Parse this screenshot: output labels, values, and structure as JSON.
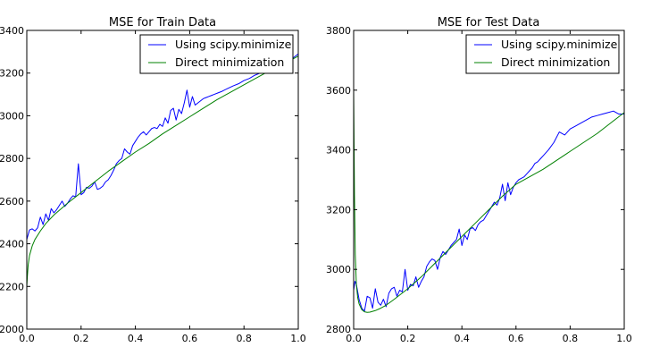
{
  "chart_data": [
    {
      "type": "line",
      "title": "MSE for Train Data",
      "xlabel": "",
      "ylabel": "",
      "xlim": [
        0.0,
        1.0
      ],
      "ylim": [
        2000,
        3400
      ],
      "xticks": [
        "0.0",
        "0.2",
        "0.4",
        "0.6",
        "0.8",
        "1.0"
      ],
      "yticks": [
        "2000",
        "2200",
        "2400",
        "2600",
        "2800",
        "3000",
        "3200",
        "3400"
      ],
      "grid": false,
      "legend_position": "top-right",
      "series": [
        {
          "name": "Using scipy.minimize",
          "color": "#0000ff",
          "x": [
            0.0,
            0.01,
            0.02,
            0.03,
            0.04,
            0.05,
            0.06,
            0.07,
            0.08,
            0.09,
            0.1,
            0.11,
            0.12,
            0.13,
            0.14,
            0.15,
            0.16,
            0.17,
            0.18,
            0.19,
            0.2,
            0.21,
            0.22,
            0.23,
            0.24,
            0.25,
            0.26,
            0.27,
            0.28,
            0.29,
            0.3,
            0.31,
            0.32,
            0.33,
            0.34,
            0.35,
            0.36,
            0.37,
            0.38,
            0.39,
            0.4,
            0.41,
            0.42,
            0.43,
            0.44,
            0.45,
            0.46,
            0.47,
            0.48,
            0.49,
            0.5,
            0.51,
            0.52,
            0.53,
            0.54,
            0.55,
            0.56,
            0.57,
            0.58,
            0.59,
            0.6,
            0.61,
            0.62,
            0.63,
            0.64,
            0.65,
            0.66,
            0.67,
            0.68,
            0.69,
            0.7,
            0.72,
            0.74,
            0.76,
            0.78,
            0.8,
            0.82,
            0.84,
            0.86,
            0.88,
            0.9,
            0.92,
            0.94,
            0.96,
            0.98,
            1.0
          ],
          "y": [
            2420,
            2465,
            2470,
            2460,
            2475,
            2525,
            2490,
            2540,
            2510,
            2565,
            2545,
            2560,
            2580,
            2600,
            2575,
            2590,
            2610,
            2625,
            2620,
            2775,
            2630,
            2640,
            2665,
            2660,
            2670,
            2690,
            2655,
            2660,
            2670,
            2690,
            2700,
            2720,
            2745,
            2775,
            2790,
            2800,
            2845,
            2830,
            2820,
            2860,
            2880,
            2900,
            2915,
            2925,
            2910,
            2925,
            2940,
            2945,
            2940,
            2960,
            2950,
            2990,
            2965,
            3025,
            3035,
            2980,
            3030,
            3010,
            3060,
            3120,
            3040,
            3090,
            3050,
            3060,
            3070,
            3080,
            3085,
            3090,
            3095,
            3100,
            3105,
            3115,
            3128,
            3140,
            3150,
            3165,
            3175,
            3190,
            3200,
            3210,
            3220,
            3235,
            3245,
            3255,
            3270,
            3290
          ]
        },
        {
          "name": "Direct minimization",
          "color": "#008000",
          "x": [
            0.0,
            0.002,
            0.005,
            0.01,
            0.02,
            0.03,
            0.05,
            0.07,
            0.1,
            0.15,
            0.2,
            0.25,
            0.3,
            0.35,
            0.4,
            0.45,
            0.5,
            0.55,
            0.6,
            0.65,
            0.7,
            0.75,
            0.8,
            0.85,
            0.9,
            0.95,
            1.0
          ],
          "y": [
            2200,
            2245,
            2300,
            2345,
            2390,
            2420,
            2460,
            2495,
            2535,
            2590,
            2640,
            2690,
            2740,
            2785,
            2830,
            2870,
            2915,
            2955,
            2995,
            3035,
            3075,
            3110,
            3145,
            3180,
            3215,
            3245,
            3280
          ]
        }
      ]
    },
    {
      "type": "line",
      "title": "MSE for Test Data",
      "xlabel": "",
      "ylabel": "",
      "xlim": [
        0.0,
        1.0
      ],
      "ylim": [
        2800,
        3800
      ],
      "xticks": [
        "0.0",
        "0.2",
        "0.4",
        "0.6",
        "0.8",
        "1.0"
      ],
      "yticks": [
        "2800",
        "3000",
        "3200",
        "3400",
        "3600",
        "3800"
      ],
      "grid": false,
      "legend_position": "top-right",
      "series": [
        {
          "name": "Using scipy.minimize",
          "color": "#0000ff",
          "x": [
            0.0,
            0.005,
            0.01,
            0.02,
            0.03,
            0.04,
            0.05,
            0.06,
            0.07,
            0.08,
            0.09,
            0.1,
            0.11,
            0.12,
            0.13,
            0.14,
            0.15,
            0.16,
            0.17,
            0.18,
            0.19,
            0.2,
            0.21,
            0.22,
            0.23,
            0.24,
            0.25,
            0.26,
            0.27,
            0.28,
            0.29,
            0.3,
            0.31,
            0.32,
            0.33,
            0.34,
            0.35,
            0.36,
            0.37,
            0.38,
            0.39,
            0.4,
            0.41,
            0.42,
            0.43,
            0.44,
            0.45,
            0.46,
            0.47,
            0.48,
            0.49,
            0.5,
            0.51,
            0.52,
            0.53,
            0.54,
            0.55,
            0.56,
            0.57,
            0.58,
            0.59,
            0.6,
            0.61,
            0.62,
            0.63,
            0.64,
            0.65,
            0.66,
            0.67,
            0.68,
            0.69,
            0.7,
            0.72,
            0.74,
            0.76,
            0.78,
            0.8,
            0.82,
            0.84,
            0.86,
            0.88,
            0.9,
            0.92,
            0.94,
            0.96,
            0.98,
            1.0
          ],
          "y": [
            2930,
            2960,
            2950,
            2900,
            2870,
            2860,
            2910,
            2905,
            2870,
            2935,
            2890,
            2880,
            2900,
            2875,
            2920,
            2935,
            2940,
            2910,
            2930,
            2925,
            3000,
            2930,
            2950,
            2945,
            2975,
            2940,
            2960,
            2975,
            3010,
            3025,
            3035,
            3030,
            3000,
            3040,
            3060,
            3050,
            3065,
            3080,
            3090,
            3100,
            3135,
            3080,
            3115,
            3100,
            3135,
            3140,
            3130,
            3150,
            3160,
            3165,
            3180,
            3195,
            3210,
            3225,
            3215,
            3240,
            3285,
            3230,
            3290,
            3250,
            3275,
            3290,
            3300,
            3305,
            3310,
            3320,
            3330,
            3340,
            3355,
            3360,
            3370,
            3380,
            3400,
            3425,
            3460,
            3450,
            3470,
            3480,
            3490,
            3500,
            3510,
            3515,
            3520,
            3525,
            3530,
            3520,
            3520
          ]
        },
        {
          "name": "Direct minimization",
          "color": "#008000",
          "x": [
            0.0,
            0.003,
            0.006,
            0.01,
            0.015,
            0.02,
            0.03,
            0.04,
            0.05,
            0.06,
            0.08,
            0.1,
            0.12,
            0.15,
            0.2,
            0.25,
            0.3,
            0.35,
            0.4,
            0.45,
            0.5,
            0.55,
            0.6,
            0.65,
            0.7,
            0.75,
            0.8,
            0.85,
            0.9,
            0.95,
            1.0
          ],
          "y": [
            3600,
            3250,
            3050,
            2950,
            2905,
            2885,
            2865,
            2858,
            2856,
            2857,
            2862,
            2870,
            2880,
            2900,
            2935,
            2975,
            3020,
            3065,
            3110,
            3155,
            3200,
            3245,
            3285,
            3310,
            3335,
            3365,
            3395,
            3425,
            3455,
            3490,
            3525
          ]
        }
      ]
    }
  ]
}
